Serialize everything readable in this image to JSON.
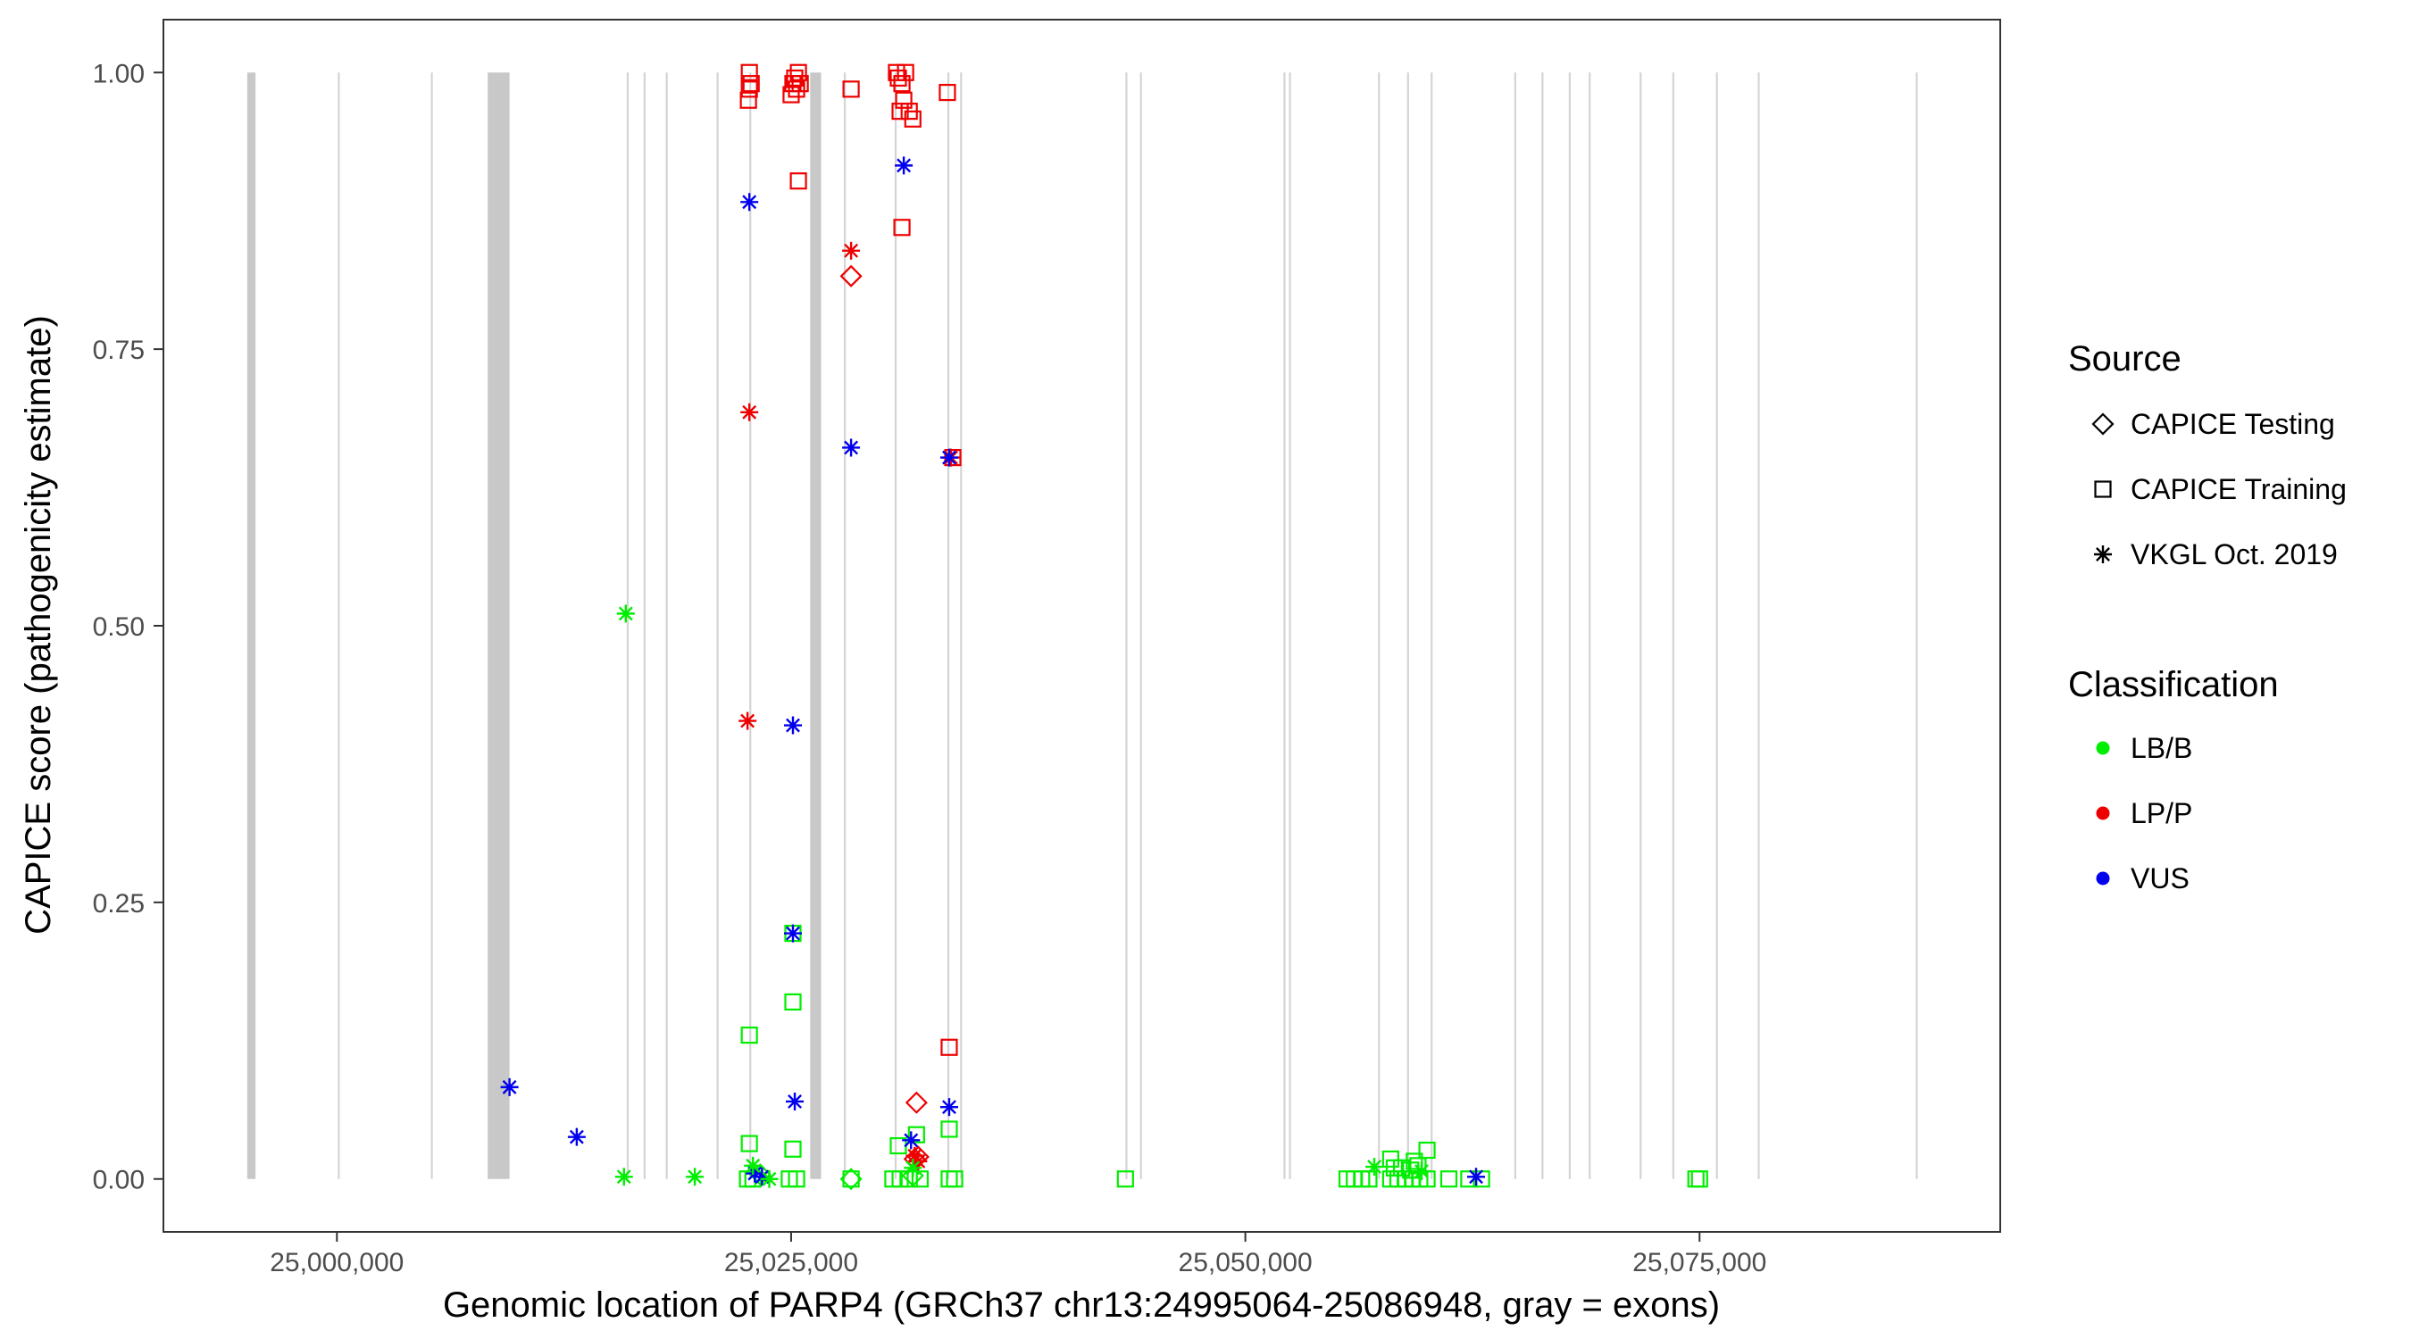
{
  "chart_data": {
    "type": "scatter",
    "title": "",
    "xlabel": "Genomic location of PARP4 (GRCh37 chr13:24995064-25086948, gray = exons)",
    "ylabel": "CAPICE score (pathogenicity estimate)",
    "xlim": [
      24990500,
      25091500
    ],
    "ylim": [
      -0.047,
      1.047
    ],
    "xticks": [
      25000000,
      25025000,
      25050000,
      25075000
    ],
    "xtick_labels": [
      "25,000,000",
      "25,025,000",
      "25,050,000",
      "25,075,000"
    ],
    "yticks": [
      0,
      0.25,
      0.5,
      0.75,
      1
    ],
    "ytick_labels": [
      "0.00",
      "0.25",
      "0.50",
      "0.75",
      "1.00"
    ],
    "grid": false,
    "legend_position": "right",
    "colors": {
      "LB/B": "#00ee00",
      "LP/P": "#ee0000",
      "VUS": "#0000ee",
      "exon": "#c8c8c8",
      "exon_thin": "#d4d4d4"
    },
    "exons": [
      [
        24995064,
        24995520
      ],
      [
        25000050,
        25000110
      ],
      [
        25005170,
        25005230
      ],
      [
        25008300,
        25009500
      ],
      [
        25015950,
        25016010
      ],
      [
        25016880,
        25016940
      ],
      [
        25018100,
        25018160
      ],
      [
        25020900,
        25020960
      ],
      [
        25022700,
        25022760
      ],
      [
        25026050,
        25026650
      ],
      [
        25027900,
        25027960
      ],
      [
        25030700,
        25030760
      ],
      [
        25033600,
        25033660
      ],
      [
        25034300,
        25034360
      ],
      [
        25043400,
        25043460
      ],
      [
        25044200,
        25044260
      ],
      [
        25052100,
        25052160
      ],
      [
        25052400,
        25052460
      ],
      [
        25057300,
        25057360
      ],
      [
        25058900,
        25058960
      ],
      [
        25060200,
        25060260
      ],
      [
        25064800,
        25064860
      ],
      [
        25066300,
        25066360
      ],
      [
        25067800,
        25067860
      ],
      [
        25068900,
        25068960
      ],
      [
        25071700,
        25071760
      ],
      [
        25073500,
        25073560
      ],
      [
        25075900,
        25075960
      ],
      [
        25078200,
        25078260
      ],
      [
        25086900,
        25086948
      ]
    ],
    "legend": {
      "source_title": "Source",
      "source_items": [
        {
          "label": "CAPICE Testing",
          "shape": "diamond"
        },
        {
          "label": "CAPICE Training",
          "shape": "square"
        },
        {
          "label": "VKGL Oct. 2019",
          "shape": "star"
        }
      ],
      "class_title": "Classification",
      "class_items": [
        {
          "label": "LB/B",
          "color": "#00ee00"
        },
        {
          "label": "LP/P",
          "color": "#ee0000"
        },
        {
          "label": "VUS",
          "color": "#0000ee"
        }
      ]
    },
    "series": [
      {
        "source": "CAPICE Training",
        "shape": "square",
        "class": "LP/P",
        "points": [
          [
            25022700,
            1.0
          ],
          [
            25022800,
            0.99
          ],
          [
            25022700,
            0.985
          ],
          [
            25022650,
            0.975
          ],
          [
            25025200,
            0.995
          ],
          [
            25025500,
            0.99
          ],
          [
            25025300,
            0.985
          ],
          [
            25025000,
            0.98
          ],
          [
            25025400,
            1.0
          ],
          [
            25025100,
            0.99
          ],
          [
            25025400,
            0.902
          ],
          [
            25028300,
            0.985
          ],
          [
            25030800,
            1.0
          ],
          [
            25030900,
            0.995
          ],
          [
            25031100,
            0.99
          ],
          [
            25031300,
            1.0
          ],
          [
            25031200,
            0.975
          ],
          [
            25031000,
            0.965
          ],
          [
            25031500,
            0.965
          ],
          [
            25031700,
            0.958
          ],
          [
            25031100,
            0.86
          ],
          [
            25033600,
            0.982
          ],
          [
            25033900,
            0.652
          ],
          [
            25033700,
            0.119
          ]
        ]
      },
      {
        "source": "CAPICE Training",
        "shape": "square",
        "class": "LB/B",
        "points": [
          [
            25022700,
            0.13
          ],
          [
            25025100,
            0.16
          ],
          [
            25025100,
            0.222
          ],
          [
            25022700,
            0.032
          ],
          [
            25025100,
            0.027
          ],
          [
            25022600,
            0.0
          ],
          [
            25022900,
            0.0
          ],
          [
            25024900,
            0.0
          ],
          [
            25025300,
            0.0
          ],
          [
            25028300,
            0.0
          ],
          [
            25030600,
            0.0
          ],
          [
            25031000,
            0.0
          ],
          [
            25031500,
            0.0
          ],
          [
            25032100,
            0.0
          ],
          [
            25030900,
            0.03
          ],
          [
            25031900,
            0.04
          ],
          [
            25033700,
            0.045
          ],
          [
            25033700,
            0.0
          ],
          [
            25034000,
            0.0
          ],
          [
            25043400,
            0.0
          ],
          [
            25055600,
            0.0
          ],
          [
            25056000,
            0.0
          ],
          [
            25056400,
            0.0
          ],
          [
            25056800,
            0.0
          ],
          [
            25058000,
            0.0
          ],
          [
            25058400,
            0.0
          ],
          [
            25058800,
            0.0
          ],
          [
            25059200,
            0.0
          ],
          [
            25059600,
            0.0
          ],
          [
            25060000,
            0.0
          ],
          [
            25058200,
            0.01
          ],
          [
            25058600,
            0.01
          ],
          [
            25059100,
            0.008
          ],
          [
            25059500,
            0.012
          ],
          [
            25058000,
            0.018
          ],
          [
            25059300,
            0.016
          ],
          [
            25060000,
            0.026
          ],
          [
            25061200,
            0.0
          ],
          [
            25062300,
            0.0
          ],
          [
            25063000,
            0.0
          ],
          [
            25074800,
            0.0
          ],
          [
            25075000,
            0.0
          ]
        ]
      },
      {
        "source": "CAPICE Testing",
        "shape": "diamond",
        "class": "LP/P",
        "points": [
          [
            25028300,
            0.816
          ],
          [
            25031900,
            0.069
          ],
          [
            25031800,
            0.018
          ],
          [
            25032000,
            0.02
          ]
        ]
      },
      {
        "source": "CAPICE Testing",
        "shape": "diamond",
        "class": "LB/B",
        "points": [
          [
            25023300,
            0.004
          ],
          [
            25028300,
            0.0
          ],
          [
            25031700,
            0.003
          ]
        ]
      },
      {
        "source": "VKGL Oct. 2019",
        "shape": "star",
        "class": "LP/P",
        "points": [
          [
            25028300,
            0.839
          ],
          [
            25022700,
            0.693
          ],
          [
            25022600,
            0.414
          ],
          [
            25033800,
            0.652
          ],
          [
            25031800,
            0.021
          ],
          [
            25032000,
            0.016
          ]
        ]
      },
      {
        "source": "VKGL Oct. 2019",
        "shape": "star",
        "class": "VUS",
        "points": [
          [
            25022700,
            0.883
          ],
          [
            25031200,
            0.916
          ],
          [
            25028300,
            0.661
          ],
          [
            25033700,
            0.652
          ],
          [
            25025100,
            0.41
          ],
          [
            25025100,
            0.222
          ],
          [
            25025200,
            0.07
          ],
          [
            25033700,
            0.065
          ],
          [
            25031600,
            0.035
          ],
          [
            25009500,
            0.083
          ],
          [
            25013200,
            0.038
          ],
          [
            25023000,
            0.005
          ],
          [
            25023400,
            0.002
          ],
          [
            25062700,
            0.002
          ]
        ]
      },
      {
        "source": "VKGL Oct. 2019",
        "shape": "star",
        "class": "LB/B",
        "points": [
          [
            25015900,
            0.511
          ],
          [
            25015800,
            0.002
          ],
          [
            25019700,
            0.002
          ],
          [
            25022900,
            0.012
          ],
          [
            25023800,
            0.0
          ],
          [
            25031700,
            0.01
          ],
          [
            25057100,
            0.011
          ],
          [
            25059700,
            0.007
          ]
        ]
      }
    ]
  }
}
